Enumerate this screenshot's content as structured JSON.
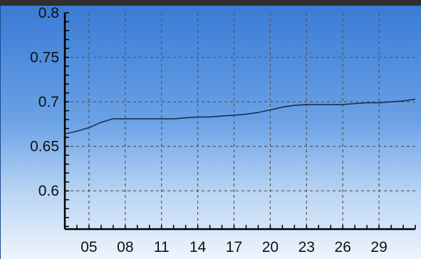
{
  "colors": {
    "window_background": "#2f2f2f",
    "gradient_top": "#3a7bd5",
    "gradient_bottom": "#eef5fd",
    "grid": "#555555",
    "axis": "#000000",
    "series_line": "#1c2f4f"
  },
  "chart_data": {
    "type": "line",
    "title": "",
    "xlabel": "",
    "ylabel": "",
    "x_tick_labels": [
      "05",
      "08",
      "11",
      "14",
      "17",
      "20",
      "23",
      "26",
      "29"
    ],
    "x_ticks": [
      5,
      8,
      11,
      14,
      17,
      20,
      23,
      26,
      29
    ],
    "xlim": [
      3,
      32
    ],
    "y_tick_labels": [
      "0.8",
      "0.75",
      "0.7",
      "0.65",
      "0.6"
    ],
    "y_ticks": [
      0.8,
      0.75,
      0.7,
      0.65,
      0.6
    ],
    "ylim": [
      0.557,
      0.8
    ],
    "grid": true,
    "legend": "none",
    "series": [
      {
        "x": [
          3,
          4,
          5,
          6,
          7,
          8,
          9,
          10,
          11,
          12,
          13,
          14,
          15,
          16,
          17,
          18,
          19,
          20,
          21,
          22,
          23,
          24,
          25,
          26,
          27,
          28,
          29,
          30,
          31,
          32
        ],
        "values": [
          0.664,
          0.667,
          0.671,
          0.677,
          0.681,
          0.681,
          0.681,
          0.681,
          0.681,
          0.681,
          0.682,
          0.683,
          0.683,
          0.684,
          0.685,
          0.686,
          0.688,
          0.691,
          0.694,
          0.696,
          0.697,
          0.697,
          0.697,
          0.697,
          0.698,
          0.699,
          0.699,
          0.7,
          0.701,
          0.703
        ]
      }
    ]
  }
}
